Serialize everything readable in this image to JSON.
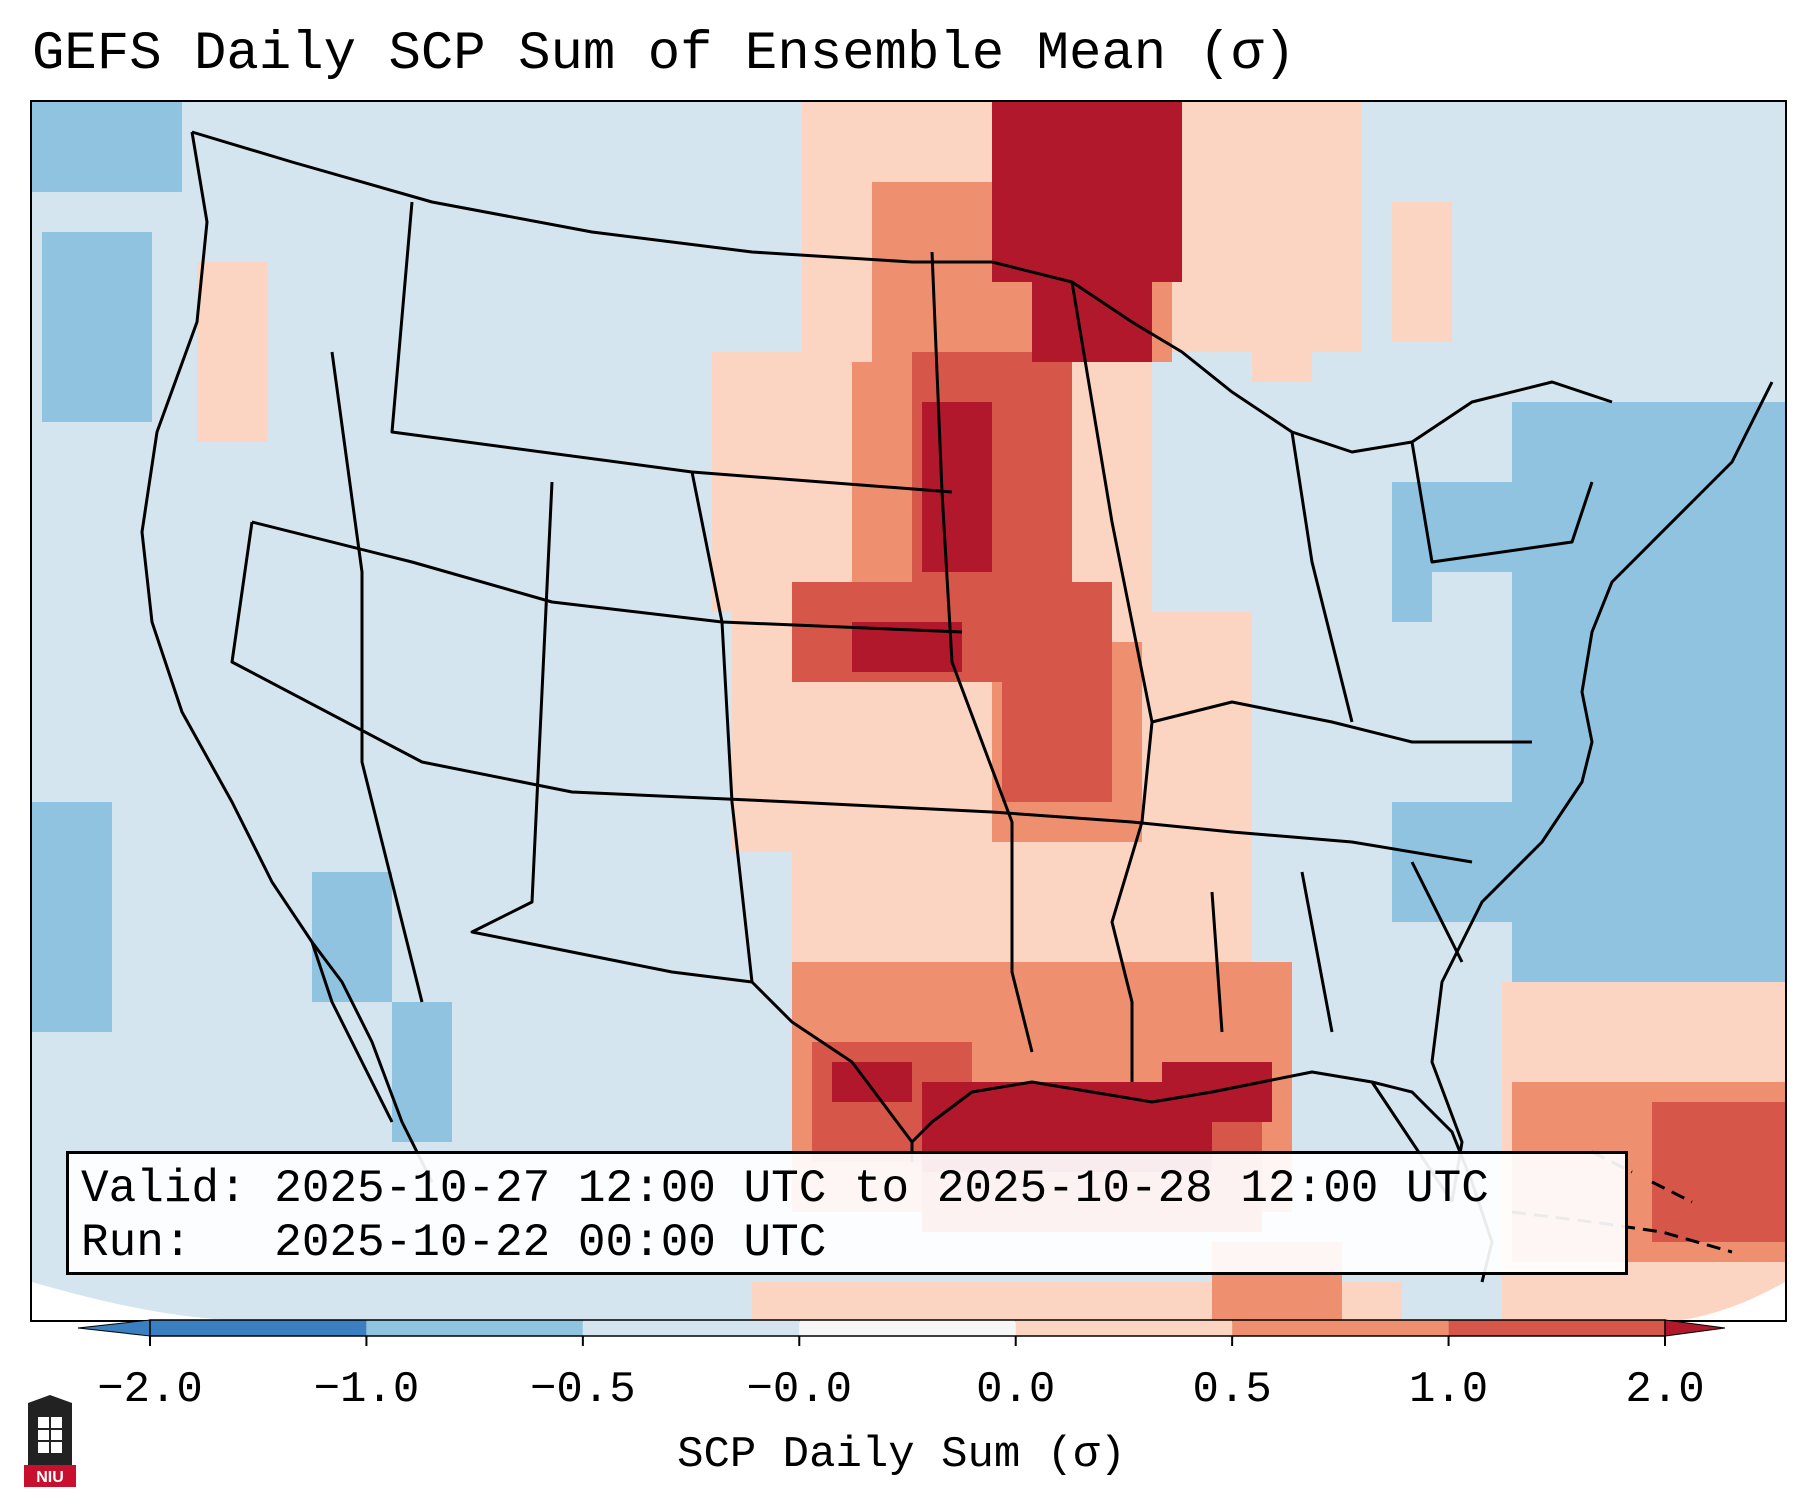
{
  "title": "GEFS Daily SCP Sum of Ensemble Mean (σ)",
  "info": {
    "valid_line": "Valid: 2025-10-27 12:00 UTC to 2025-10-28 12:00 UTC",
    "run_line": "Run:   2025-10-22 00:00 UTC"
  },
  "colorbar": {
    "label": "SCP Daily Sum (σ)",
    "ticks": [
      "−2.0",
      "−1.0",
      "−0.5",
      "−0.0",
      "0.0",
      "0.5",
      "1.0",
      "2.0"
    ],
    "colors": [
      "#3a7fbf",
      "#8fc3e0",
      "#d4e5f0",
      "#f7f7f7",
      "#fbd5c2",
      "#ee9070",
      "#d6574a",
      "#b2182b"
    ]
  },
  "colors": {
    "ocean_low": "#8fc3e0",
    "background": "#d4e5f0",
    "light_pos": "#fbd5c2",
    "mid_pos": "#ee9070",
    "high_pos": "#d6574a",
    "max_pos": "#b2182b"
  },
  "logo": {
    "text": "NIU"
  }
}
